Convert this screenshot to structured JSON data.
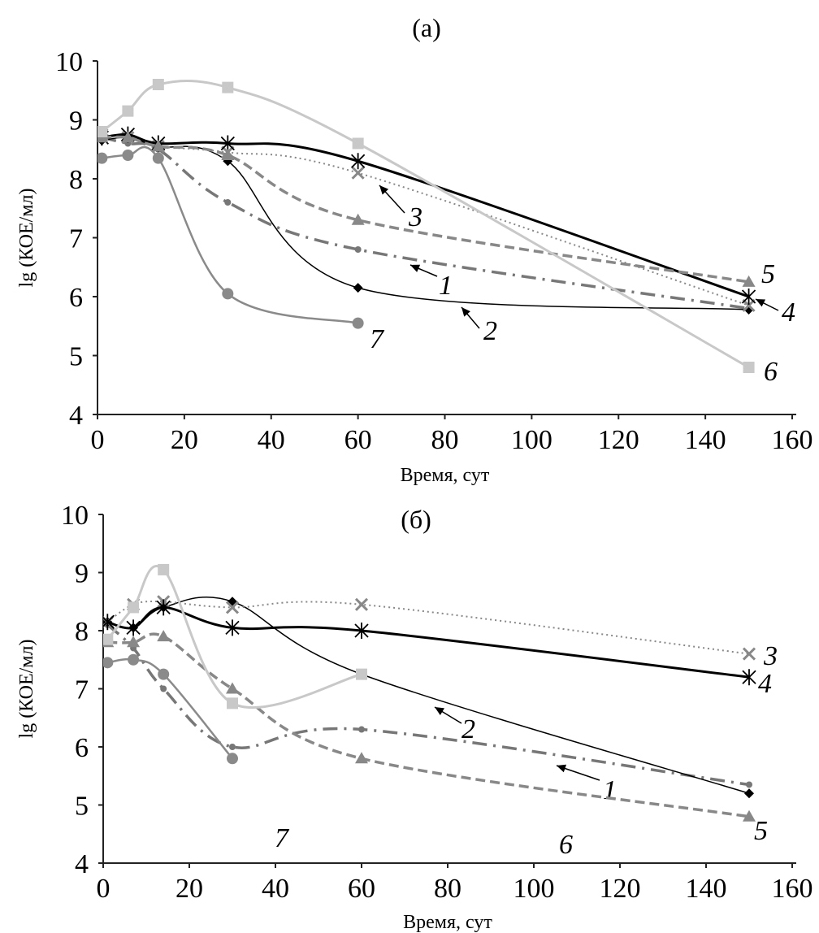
{
  "chart_data": [
    {
      "type": "line",
      "title": "(a)",
      "xlabel": "Время, сут",
      "ylabel": "lg (КОЕ/мл)",
      "xlim": [
        0,
        160
      ],
      "ylim": [
        4,
        10
      ],
      "xticks": [
        "0",
        "20",
        "40",
        "60",
        "80",
        "100",
        "120",
        "140",
        "160"
      ],
      "yticks": [
        "4",
        "5",
        "6",
        "7",
        "8",
        "9",
        "10"
      ],
      "grid": false,
      "series": [
        {
          "name": "1",
          "x": [
            1,
            7,
            14,
            30,
            60,
            150
          ],
          "y": [
            8.7,
            8.6,
            8.5,
            7.6,
            6.8,
            5.8
          ]
        },
        {
          "name": "2",
          "x": [
            1,
            7,
            14,
            30,
            60,
            150
          ],
          "y": [
            8.65,
            8.7,
            8.55,
            8.3,
            6.15,
            5.78
          ]
        },
        {
          "name": "3",
          "x": [
            1,
            7,
            14,
            30,
            60,
            150
          ],
          "y": [
            8.75,
            8.7,
            8.55,
            8.45,
            8.1,
            5.85
          ]
        },
        {
          "name": "4",
          "x": [
            1,
            7,
            14,
            30,
            60,
            150
          ],
          "y": [
            8.7,
            8.75,
            8.6,
            8.6,
            8.3,
            6.0
          ]
        },
        {
          "name": "5",
          "x": [
            1,
            7,
            14,
            30,
            60,
            150
          ],
          "y": [
            8.7,
            8.7,
            8.55,
            8.4,
            7.3,
            6.25
          ]
        },
        {
          "name": "6",
          "x": [
            1,
            7,
            14,
            30,
            60,
            150
          ],
          "y": [
            8.8,
            9.15,
            9.6,
            9.55,
            8.6,
            4.8
          ]
        },
        {
          "name": "7",
          "x": [
            1,
            7,
            14,
            30,
            60
          ],
          "y": [
            8.35,
            8.4,
            8.35,
            6.05,
            5.55
          ]
        }
      ]
    },
    {
      "type": "line",
      "title": "(б)",
      "xlabel": "Время, сут",
      "ylabel": "lg (КОЕ/мл)",
      "xlim": [
        0,
        160
      ],
      "ylim": [
        4,
        10
      ],
      "xticks": [
        "0",
        "20",
        "40",
        "60",
        "80",
        "100",
        "120",
        "140",
        "160"
      ],
      "yticks": [
        "4",
        "5",
        "6",
        "7",
        "8",
        "9",
        "10"
      ],
      "grid": false,
      "series": [
        {
          "name": "1",
          "x": [
            1,
            7,
            14,
            30,
            60,
            150
          ],
          "y": [
            8.1,
            7.7,
            7.0,
            6.0,
            6.3,
            5.35
          ]
        },
        {
          "name": "2",
          "x": [
            1,
            7,
            14,
            30,
            60,
            150
          ],
          "y": [
            8.15,
            8.05,
            8.4,
            8.5,
            7.25,
            5.2
          ]
        },
        {
          "name": "3",
          "x": [
            1,
            7,
            14,
            30,
            60,
            150
          ],
          "y": [
            8.15,
            8.45,
            8.5,
            8.4,
            8.45,
            7.6
          ]
        },
        {
          "name": "4",
          "x": [
            1,
            7,
            14,
            30,
            60,
            150
          ],
          "y": [
            8.15,
            8.05,
            8.4,
            8.05,
            8.0,
            7.2
          ]
        },
        {
          "name": "5",
          "x": [
            1,
            7,
            14,
            30,
            60,
            150
          ],
          "y": [
            7.8,
            7.8,
            7.9,
            7.0,
            5.8,
            4.8
          ]
        },
        {
          "name": "6",
          "x": [
            1,
            7,
            14,
            30,
            60
          ],
          "y": [
            7.85,
            8.4,
            9.05,
            6.75,
            7.25
          ]
        },
        {
          "name": "7",
          "x": [
            1,
            7,
            14,
            30
          ],
          "y": [
            7.45,
            7.5,
            7.25,
            5.8
          ]
        }
      ]
    }
  ]
}
